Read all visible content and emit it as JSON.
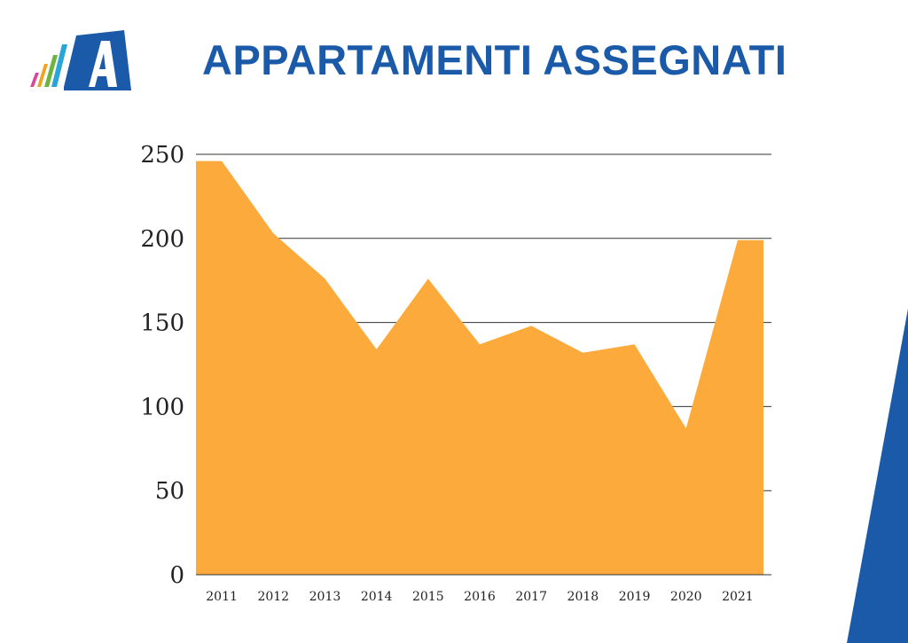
{
  "header": {
    "title": "APPARTAMENTI ASSEGNATI",
    "title_color": "#1a5aa8",
    "logo_icon": "company-logo-a-icon",
    "logo_color": "#1a5aa8",
    "logo_bar_colors": [
      "#d64a9c",
      "#f2a21c",
      "#6cb33f",
      "#29a6d6"
    ]
  },
  "decor": {
    "corner_color": "#1a5aa8"
  },
  "chart_data": {
    "type": "area",
    "categories": [
      "2011",
      "2012",
      "2013",
      "2014",
      "2015",
      "2016",
      "2017",
      "2018",
      "2019",
      "2020",
      "2021"
    ],
    "values": [
      246,
      203,
      176,
      134,
      176,
      137,
      148,
      132,
      137,
      87,
      199
    ],
    "title": "",
    "xlabel": "",
    "ylabel": "",
    "ylim": [
      0,
      250
    ],
    "yticks": [
      0,
      50,
      100,
      150,
      200,
      250
    ],
    "grid": true,
    "fill_color": "#fbaa3b"
  }
}
